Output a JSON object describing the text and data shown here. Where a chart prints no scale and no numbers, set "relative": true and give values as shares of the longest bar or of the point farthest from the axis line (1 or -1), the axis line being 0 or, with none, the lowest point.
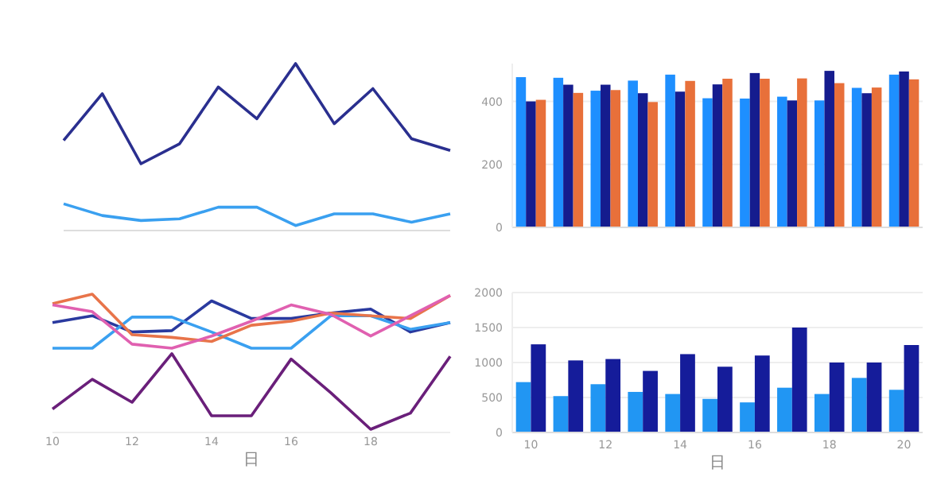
{
  "chart_data": [
    {
      "type": "line",
      "relative": true,
      "tick_labels": false,
      "categories": [
        null,
        null,
        null,
        null,
        null,
        null,
        null,
        null,
        null,
        null,
        null
      ],
      "series": [
        {
          "color": "#2a2f8f",
          "values": [
            0.54,
            0.82,
            0.4,
            0.52,
            0.86,
            0.67,
            1,
            0.64,
            0.85,
            0.55,
            0.48
          ]
        },
        {
          "color": "#3aa0f0",
          "values": [
            0.16,
            0.09,
            0.06,
            0.07,
            0.14,
            0.14,
            0.03,
            0.1,
            0.1,
            0.05,
            0.1
          ]
        }
      ]
    },
    {
      "type": "bar",
      "tick_labels": "y",
      "categories": [
        null,
        null,
        null,
        null,
        null,
        null,
        null,
        null,
        null,
        null,
        null
      ],
      "ylim": [
        0,
        520
      ],
      "yticks": [
        0,
        200,
        400
      ],
      "grid": "y",
      "series": [
        {
          "color": "#1e8fff",
          "values": [
            477,
            475,
            434,
            466,
            485,
            410,
            409,
            415,
            403,
            443,
            485
          ]
        },
        {
          "color": "#151c8e",
          "values": [
            400,
            453,
            453,
            426,
            431,
            454,
            490,
            403,
            497,
            426,
            495
          ]
        },
        {
          "color": "#e8703a",
          "values": [
            405,
            427,
            436,
            398,
            465,
            472,
            472,
            473,
            458,
            444,
            470
          ]
        }
      ]
    },
    {
      "type": "line",
      "relative": true,
      "tick_labels": "x",
      "x": [
        10,
        11,
        12,
        13,
        14,
        15,
        16,
        17,
        18,
        19,
        20
      ],
      "xlim": [
        10,
        20
      ],
      "xticks": [
        10,
        12,
        14,
        16,
        18
      ],
      "xlabel": "日",
      "series": [
        {
          "color": "#2a3a9f",
          "values": [
            0.79,
            0.84,
            0.72,
            0.73,
            0.95,
            0.82,
            0.82,
            0.86,
            0.89,
            0.72,
            0.79
          ]
        },
        {
          "color": "#3aa0f0",
          "values": [
            0.6,
            0.6,
            0.83,
            0.83,
            0.72,
            0.6,
            0.6,
            0.84,
            0.84,
            0.74,
            0.79
          ]
        },
        {
          "color": "#e8744a",
          "values": [
            0.93,
            1,
            0.7,
            0.68,
            0.65,
            0.77,
            0.8,
            0.86,
            0.84,
            0.82,
            0.99
          ]
        },
        {
          "color": "#e060b0",
          "values": [
            0.92,
            0.87,
            0.63,
            0.6,
            0.69,
            0.8,
            0.92,
            0.85,
            0.69,
            0.84,
            0.99
          ]
        },
        {
          "color": "#6a1f7a",
          "values": [
            0.15,
            0.37,
            0.2,
            0.56,
            0.1,
            0.1,
            0.52,
            0.27,
            0,
            0.12,
            0.54
          ]
        }
      ]
    },
    {
      "type": "bar",
      "categories": [
        "10",
        null,
        "12",
        null,
        "14",
        null,
        "16",
        null,
        "18",
        null,
        "20"
      ],
      "ylim": [
        0,
        2000
      ],
      "yticks": [
        0,
        500,
        1000,
        1500,
        2000
      ],
      "grid": "y",
      "xlabel": "日",
      "series": [
        {
          "color": "#2196f3",
          "values": [
            720,
            520,
            690,
            580,
            550,
            480,
            430,
            640,
            550,
            780,
            610
          ]
        },
        {
          "color": "#151c9a",
          "values": [
            1260,
            1030,
            1050,
            880,
            1120,
            940,
            1100,
            1500,
            1000,
            1000,
            1250
          ]
        }
      ]
    }
  ]
}
